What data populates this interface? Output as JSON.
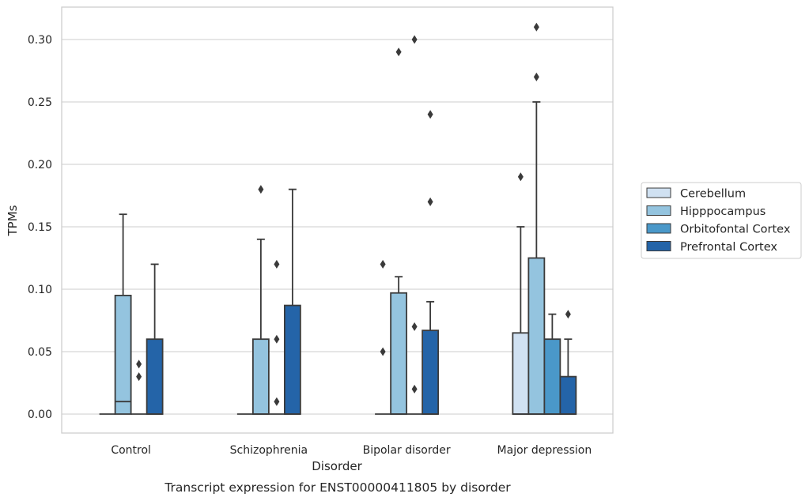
{
  "caption": "Transcript expression for ENST00000411805 by disorder",
  "chart_data": {
    "type": "box",
    "xlabel": "Disorder",
    "ylabel": "TPMs",
    "ylim": [
      -0.015,
      0.325
    ],
    "yticks": [
      "0.00",
      "0.05",
      "0.10",
      "0.15",
      "0.20",
      "0.25",
      "0.30"
    ],
    "grid": "horizontal",
    "legend_position": "right",
    "categories": [
      "Control",
      "Schizophrenia",
      "Bipolar disorder",
      "Major depression"
    ],
    "series": [
      {
        "name": "Cerebellum",
        "color": "#d0e1f2",
        "boxes": [
          {
            "q1": 0,
            "median": 0,
            "q3": 0,
            "whisker_low": 0,
            "whisker_high": 0,
            "outliers": []
          },
          {
            "q1": 0,
            "median": 0,
            "q3": 0,
            "whisker_low": 0,
            "whisker_high": 0,
            "outliers": []
          },
          {
            "q1": 0,
            "median": 0,
            "q3": 0,
            "whisker_low": 0,
            "whisker_high": 0,
            "outliers": [
              0.12,
              0.05
            ]
          },
          {
            "q1": 0,
            "median": 0,
            "q3": 0.065,
            "whisker_low": 0,
            "whisker_high": 0.15,
            "outliers": [
              0.19
            ]
          }
        ]
      },
      {
        "name": "Hipppocampus",
        "color": "#94c4df",
        "boxes": [
          {
            "q1": 0,
            "median": 0.01,
            "q3": 0.095,
            "whisker_low": 0,
            "whisker_high": 0.16,
            "outliers": []
          },
          {
            "q1": 0,
            "median": 0,
            "q3": 0.06,
            "whisker_low": 0,
            "whisker_high": 0.14,
            "outliers": [
              0.18
            ]
          },
          {
            "q1": 0,
            "median": 0,
            "q3": 0.097,
            "whisker_low": 0,
            "whisker_high": 0.11,
            "outliers": [
              0.29
            ]
          },
          {
            "q1": 0,
            "median": 0,
            "q3": 0.125,
            "whisker_low": 0,
            "whisker_high": 0.25,
            "outliers": [
              0.31,
              0.27
            ]
          }
        ]
      },
      {
        "name": "Orbitofontal Cortex",
        "color": "#4a98c9",
        "boxes": [
          {
            "q1": 0,
            "median": 0,
            "q3": 0,
            "whisker_low": 0,
            "whisker_high": 0,
            "outliers": [
              0.04,
              0.03
            ]
          },
          {
            "q1": 0,
            "median": 0,
            "q3": 0,
            "whisker_low": 0,
            "whisker_high": 0,
            "outliers": [
              0.12,
              0.06,
              0.01
            ]
          },
          {
            "q1": 0,
            "median": 0,
            "q3": 0,
            "whisker_low": 0,
            "whisker_high": 0,
            "outliers": [
              0.3,
              0.07,
              0.02
            ]
          },
          {
            "q1": 0,
            "median": 0,
            "q3": 0.06,
            "whisker_low": 0,
            "whisker_high": 0.08,
            "outliers": []
          }
        ]
      },
      {
        "name": "Prefrontal Cortex",
        "color": "#2464a8",
        "boxes": [
          {
            "q1": 0,
            "median": 0,
            "q3": 0.06,
            "whisker_low": 0,
            "whisker_high": 0.12,
            "outliers": []
          },
          {
            "q1": 0,
            "median": 0,
            "q3": 0.087,
            "whisker_low": 0,
            "whisker_high": 0.18,
            "outliers": []
          },
          {
            "q1": 0,
            "median": 0,
            "q3": 0.067,
            "whisker_low": 0,
            "whisker_high": 0.09,
            "outliers": [
              0.24,
              0.17
            ]
          },
          {
            "q1": 0,
            "median": 0,
            "q3": 0.03,
            "whisker_low": 0,
            "whisker_high": 0.06,
            "outliers": [
              0.08
            ]
          }
        ]
      }
    ]
  }
}
